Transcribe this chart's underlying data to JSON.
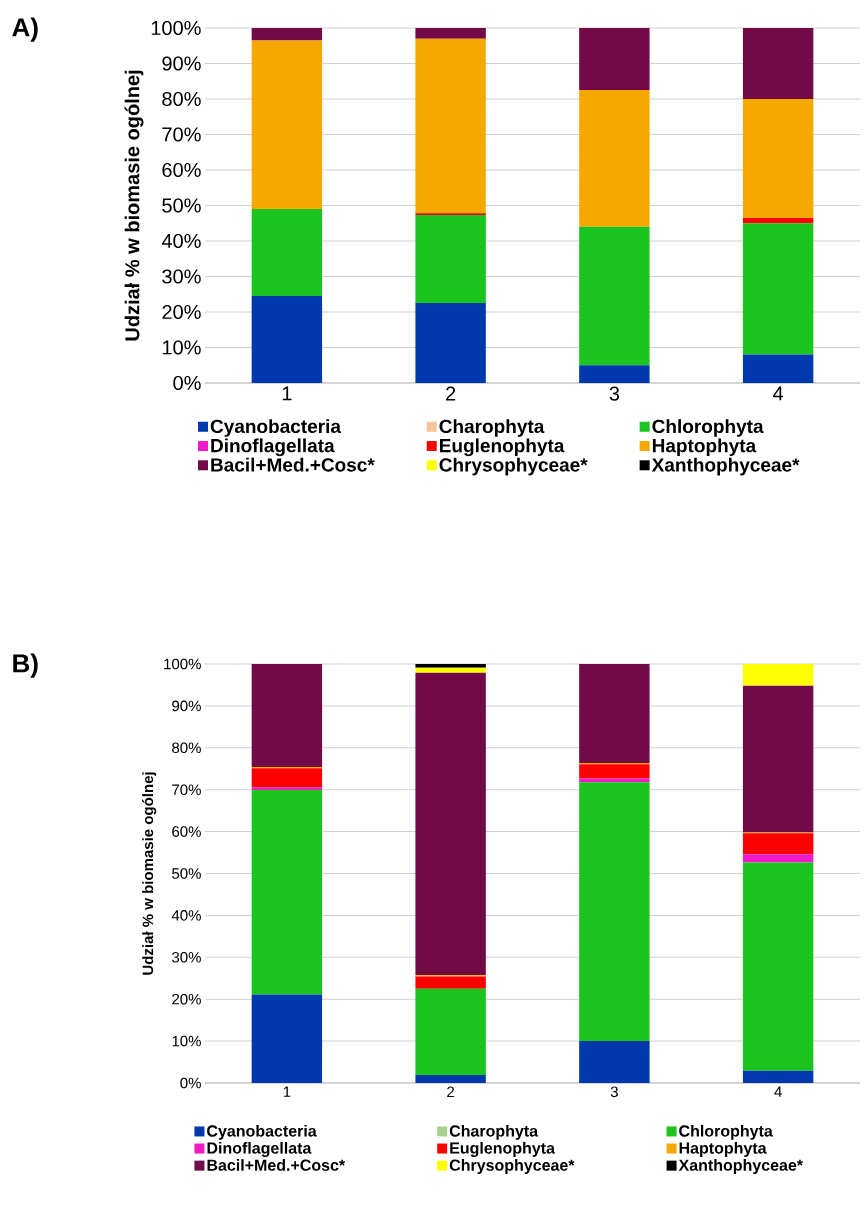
{
  "chart_data": [
    {
      "type": "bar",
      "title": "A)",
      "ylabel": "Udział % w biomasie ogólnej",
      "categories": [
        "1",
        "2",
        "3",
        "4"
      ],
      "stacked": true,
      "grid": "y",
      "legend": "bottom",
      "ylim": [
        0,
        100
      ],
      "yticks": [
        {
          "value": 0,
          "label": "0%"
        },
        {
          "value": 10,
          "label": "10%"
        },
        {
          "value": 20,
          "label": "20%"
        },
        {
          "value": 30,
          "label": "30%"
        },
        {
          "value": 40,
          "label": "40%"
        },
        {
          "value": 50,
          "label": "50%"
        },
        {
          "value": 60,
          "label": "60%"
        },
        {
          "value": 70,
          "label": "70%"
        },
        {
          "value": 80,
          "label": "80%"
        },
        {
          "value": 90,
          "label": "90%"
        },
        {
          "value": 100,
          "label": "100%"
        }
      ],
      "series": [
        {
          "name": "Cyanobacteria",
          "color": "#0038ad",
          "values": [
            24.5,
            22.5,
            5,
            8
          ]
        },
        {
          "name": "Charophyta",
          "color": "#f8c39b",
          "values": [
            0,
            0,
            0,
            0
          ]
        },
        {
          "name": "Chlorophyta",
          "color": "#1cc41f",
          "values": [
            24.5,
            24.8,
            39,
            37
          ]
        },
        {
          "name": "Dinoflagellata",
          "color": "#f01ac8",
          "values": [
            0,
            0,
            0,
            0
          ]
        },
        {
          "name": "Euglenophyta",
          "color": "#ff0000",
          "values": [
            0,
            0.5,
            0,
            1.5
          ]
        },
        {
          "name": "Haptophyta",
          "color": "#f5a900",
          "values": [
            47.5,
            49.2,
            38.5,
            33.5
          ]
        },
        {
          "name": "Bacil+Med.+Cosc*",
          "color": "#730a48",
          "values": [
            3.5,
            3,
            17.5,
            20
          ]
        },
        {
          "name": "Chrysophyceae*",
          "color": "#ffff00",
          "values": [
            0,
            0,
            0,
            0
          ]
        },
        {
          "name": "Xanthophyceae*",
          "color": "#000000",
          "values": [
            0,
            0,
            0,
            0
          ]
        }
      ]
    },
    {
      "type": "bar",
      "title": "B)",
      "ylabel": "Udział % w biomasie ogólnej",
      "categories": [
        "1",
        "2",
        "3",
        "4"
      ],
      "stacked": true,
      "grid": "y",
      "legend": "bottom",
      "ylim": [
        0,
        100
      ],
      "yticks": [
        {
          "value": 0,
          "label": "0%"
        },
        {
          "value": 10,
          "label": "10%"
        },
        {
          "value": 20,
          "label": "20%"
        },
        {
          "value": 30,
          "label": "30%"
        },
        {
          "value": 40,
          "label": "40%"
        },
        {
          "value": 50,
          "label": "50%"
        },
        {
          "value": 60,
          "label": "60%"
        },
        {
          "value": 70,
          "label": "70%"
        },
        {
          "value": 80,
          "label": "80%"
        },
        {
          "value": 90,
          "label": "90%"
        },
        {
          "value": 100,
          "label": "100%"
        }
      ],
      "series": [
        {
          "name": "Cyanobacteria",
          "color": "#0038ad",
          "values": [
            21.1,
            1.9,
            10.0,
            2.9
          ]
        },
        {
          "name": "Charophyta",
          "color": "#a9d18e",
          "values": [
            0,
            0,
            0,
            0
          ]
        },
        {
          "name": "Chlorophyta",
          "color": "#1cc41f",
          "values": [
            48.8,
            20.6,
            61.8,
            49.7
          ]
        },
        {
          "name": "Dinoflagellata",
          "color": "#f01ac8",
          "values": [
            0.6,
            0,
            0.9,
            2.0
          ]
        },
        {
          "name": "Euglenophyta",
          "color": "#ff0000",
          "values": [
            4.6,
            2.9,
            3.4,
            5.0
          ]
        },
        {
          "name": "Haptophyta",
          "color": "#f5a900",
          "values": [
            0.3,
            0.3,
            0.3,
            0.2
          ]
        },
        {
          "name": "Bacil+Med.+Cosc*",
          "color": "#730a48",
          "values": [
            24.6,
            72.2,
            23.6,
            35.0
          ]
        },
        {
          "name": "Chrysophyceae*",
          "color": "#ffff00",
          "values": [
            0,
            1.2,
            0,
            5.2
          ]
        },
        {
          "name": "Xanthophyceae*",
          "color": "#000000",
          "values": [
            0,
            0.9,
            0,
            0
          ]
        }
      ]
    }
  ]
}
